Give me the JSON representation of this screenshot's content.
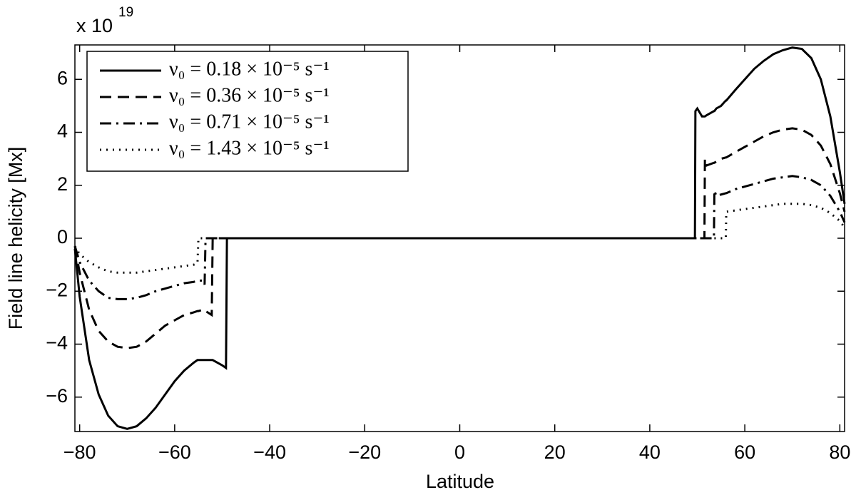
{
  "chart_data": {
    "type": "line",
    "multiplier": "x 10",
    "multiplier_exponent": "19",
    "xlabel": "Latitude",
    "ylabel": "Field line helicity [Mx]",
    "xlim": [
      -81,
      81
    ],
    "ylim": [
      -7.3,
      7.3
    ],
    "xticks": [
      {
        "value": -80,
        "label": "−80"
      },
      {
        "value": -60,
        "label": "−60"
      },
      {
        "value": -40,
        "label": "−40"
      },
      {
        "value": -20,
        "label": "−20"
      },
      0,
      20,
      40,
      60,
      80
    ],
    "yticks": [
      {
        "value": -6,
        "label": "−6"
      },
      {
        "value": -4,
        "label": "−4"
      },
      {
        "value": -2,
        "label": "−2"
      },
      0,
      2,
      4,
      6
    ],
    "legend_position": "upper left",
    "x": [
      -81,
      -80,
      -78,
      -76,
      -74,
      -72,
      -70,
      -68,
      -66,
      -64,
      -62,
      -60,
      -58,
      -56,
      -55.2,
      -55,
      -54,
      -53.7,
      -53.5,
      -52.2,
      -52,
      -50,
      -49.2,
      -49,
      0,
      49.5,
      49.6,
      50,
      51,
      51.5,
      51.6,
      52,
      53.5,
      53.6,
      54,
      55,
      56,
      56.1,
      58,
      60,
      62,
      64,
      66,
      68,
      70,
      72,
      74,
      76,
      78,
      80,
      81
    ],
    "series": [
      {
        "name": "ν₀ = 0.18 × 10⁻⁵ s⁻¹",
        "color": "#000000",
        "linestyle": "solid",
        "values": [
          -0.4,
          -2.2,
          -4.6,
          -5.9,
          -6.7,
          -7.1,
          -7.2,
          -7.1,
          -6.8,
          -6.4,
          -5.9,
          -5.4,
          -5.0,
          -4.7,
          -4.6,
          -4.6,
          -4.6,
          -4.6,
          -4.6,
          -4.6,
          -4.6,
          -4.8,
          -4.9,
          0,
          0,
          0,
          4.8,
          4.9,
          4.6,
          4.6,
          4.6,
          4.65,
          4.8,
          4.8,
          4.9,
          5.0,
          5.2,
          5.2,
          5.6,
          6.0,
          6.4,
          6.7,
          6.95,
          7.1,
          7.2,
          7.15,
          6.8,
          6.0,
          4.6,
          2.5,
          1.3
        ]
      },
      {
        "name": "ν₀ = 0.36 × 10⁻⁵ s⁻¹",
        "color": "#000000",
        "linestyle": "dashed",
        "values": [
          -0.3,
          -1.3,
          -2.7,
          -3.5,
          -3.9,
          -4.1,
          -4.15,
          -4.1,
          -3.9,
          -3.6,
          -3.3,
          -3.1,
          -2.9,
          -2.8,
          -2.75,
          -2.75,
          -2.7,
          -2.7,
          -2.75,
          -2.9,
          0,
          0,
          0,
          0,
          0,
          0,
          0,
          0,
          0,
          0,
          3.0,
          2.75,
          2.85,
          2.85,
          2.9,
          3.0,
          3.05,
          3.05,
          3.25,
          3.45,
          3.65,
          3.85,
          4.0,
          4.1,
          4.15,
          4.1,
          3.9,
          3.5,
          2.8,
          1.7,
          1.0
        ]
      },
      {
        "name": "ν₀ = 0.71 × 10⁻⁵ s⁻¹",
        "color": "#000000",
        "linestyle": "dashdot",
        "values": [
          -0.3,
          -0.9,
          -1.6,
          -2.0,
          -2.25,
          -2.3,
          -2.3,
          -2.25,
          -2.15,
          -2.0,
          -1.9,
          -1.8,
          -1.7,
          -1.65,
          -1.6,
          -1.6,
          -1.6,
          -1.75,
          0,
          0,
          0,
          0,
          0,
          0,
          0,
          0,
          0,
          0,
          0,
          0,
          0,
          0,
          0,
          1.8,
          1.6,
          1.65,
          1.7,
          1.7,
          1.85,
          1.95,
          2.05,
          2.15,
          2.25,
          2.3,
          2.35,
          2.3,
          2.2,
          2.0,
          1.6,
          1.0,
          0.6
        ]
      },
      {
        "name": "ν₀ = 1.43 × 10⁻⁵ s⁻¹",
        "color": "#000000",
        "linestyle": "dotted",
        "values": [
          -0.3,
          -0.6,
          -0.9,
          -1.1,
          -1.25,
          -1.3,
          -1.3,
          -1.3,
          -1.25,
          -1.2,
          -1.15,
          -1.1,
          -1.05,
          -1.0,
          -0.95,
          0,
          0,
          0,
          0,
          0,
          0,
          0,
          0,
          0,
          0,
          0,
          0,
          0,
          0,
          0,
          0,
          0,
          0,
          0,
          0,
          0,
          0,
          1.0,
          1.05,
          1.1,
          1.15,
          1.2,
          1.25,
          1.3,
          1.3,
          1.3,
          1.25,
          1.15,
          0.95,
          0.65,
          0.4
        ]
      }
    ]
  }
}
